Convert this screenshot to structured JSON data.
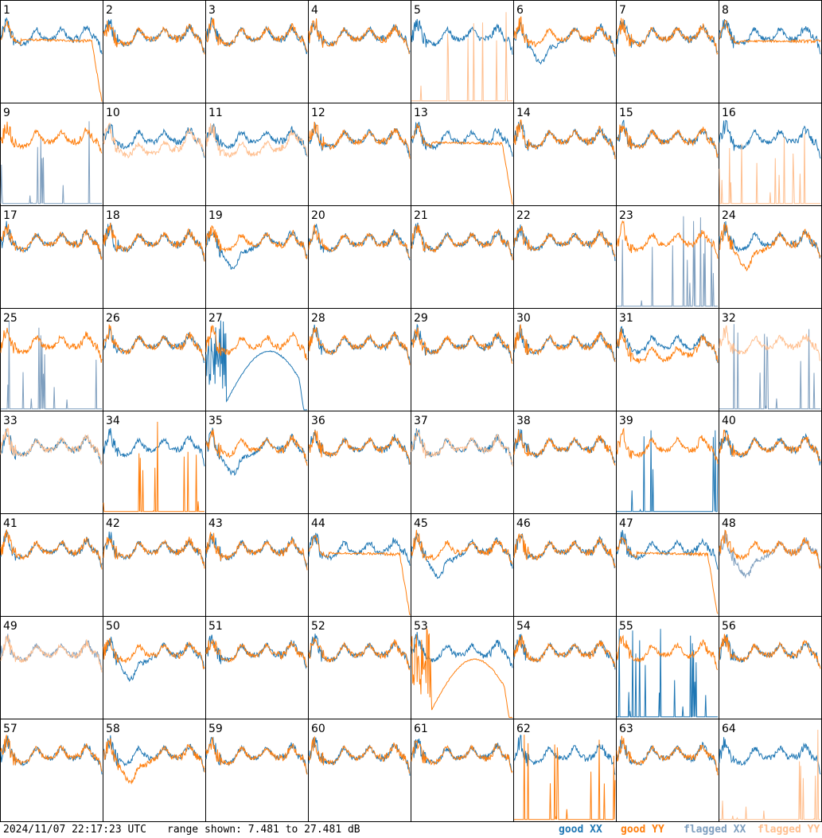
{
  "footer": {
    "timestamp": "2024/11/07 22:17:23 UTC",
    "range_text": "range shown: 7.481 to 27.481 dB"
  },
  "legend": [
    {
      "key": "gx",
      "label": "good XX",
      "color": "#1f77b4"
    },
    {
      "key": "gy",
      "label": "good YY",
      "color": "#ff7f0e"
    },
    {
      "key": "fx",
      "label": "flagged XX",
      "color": "#7f9fbf"
    },
    {
      "key": "fy",
      "label": "flagged YY",
      "color": "#ffbf8f"
    }
  ],
  "chart_data": {
    "type": "line",
    "title": "",
    "xlabel": "",
    "ylabel": "",
    "ylim": [
      7.481,
      27.481
    ],
    "grid_rows": 8,
    "grid_cols": 8,
    "panels": [
      {
        "label": "1",
        "xx": "good",
        "yy": "good",
        "yy_shape": "drop"
      },
      {
        "label": "2",
        "xx": "good",
        "yy": "good"
      },
      {
        "label": "3",
        "xx": "good",
        "yy": "good"
      },
      {
        "label": "4",
        "xx": "good",
        "yy": "good"
      },
      {
        "label": "5",
        "xx": "good",
        "yy": "flagged",
        "yy_shape": "spikes"
      },
      {
        "label": "6",
        "xx": "good",
        "yy": "good",
        "xx_shape": "dip"
      },
      {
        "label": "7",
        "xx": "good",
        "yy": "good"
      },
      {
        "label": "8",
        "xx": "good",
        "yy": "good",
        "yy_shape": "flat"
      },
      {
        "label": "9",
        "xx": "flagged",
        "yy": "good",
        "xx_shape": "spikes"
      },
      {
        "label": "10",
        "xx": "good",
        "yy": "flagged",
        "yy_shape": "low"
      },
      {
        "label": "11",
        "xx": "good",
        "yy": "flagged",
        "yy_shape": "low"
      },
      {
        "label": "12",
        "xx": "good",
        "yy": "good"
      },
      {
        "label": "13",
        "xx": "good",
        "yy": "good",
        "yy_shape": "drop"
      },
      {
        "label": "14",
        "xx": "good",
        "yy": "good"
      },
      {
        "label": "15",
        "xx": "good",
        "yy": "good"
      },
      {
        "label": "16",
        "xx": "good",
        "yy": "flagged",
        "yy_shape": "spikes"
      },
      {
        "label": "17",
        "xx": "good",
        "yy": "good"
      },
      {
        "label": "18",
        "xx": "good",
        "yy": "good"
      },
      {
        "label": "19",
        "xx": "good",
        "yy": "good",
        "xx_shape": "dip"
      },
      {
        "label": "20",
        "xx": "good",
        "yy": "good"
      },
      {
        "label": "21",
        "xx": "good",
        "yy": "good"
      },
      {
        "label": "22",
        "xx": "good",
        "yy": "good"
      },
      {
        "label": "23",
        "xx": "flagged",
        "yy": "good",
        "xx_shape": "spikes"
      },
      {
        "label": "24",
        "xx": "good",
        "yy": "good",
        "yy_shape": "dip"
      },
      {
        "label": "25",
        "xx": "flagged",
        "yy": "good",
        "xx_shape": "spikes"
      },
      {
        "label": "26",
        "xx": "good",
        "yy": "good"
      },
      {
        "label": "27",
        "xx": "good",
        "yy": "good",
        "xx_shape": "arch"
      },
      {
        "label": "28",
        "xx": "good",
        "yy": "good"
      },
      {
        "label": "29",
        "xx": "good",
        "yy": "good"
      },
      {
        "label": "30",
        "xx": "good",
        "yy": "good"
      },
      {
        "label": "31",
        "xx": "good",
        "yy": "good",
        "yy_shape": "low"
      },
      {
        "label": "32",
        "xx": "flagged",
        "yy": "flagged",
        "xx_shape": "spikes"
      },
      {
        "label": "33",
        "xx": "good",
        "yy": "flagged"
      },
      {
        "label": "34",
        "xx": "good",
        "yy": "good",
        "yy_shape": "spikes"
      },
      {
        "label": "35",
        "xx": "good",
        "yy": "good",
        "xx_shape": "dip"
      },
      {
        "label": "36",
        "xx": "good",
        "yy": "good"
      },
      {
        "label": "37",
        "xx": "good",
        "yy": "flagged"
      },
      {
        "label": "38",
        "xx": "good",
        "yy": "good"
      },
      {
        "label": "39",
        "xx": "good",
        "yy": "good",
        "xx_shape": "spikes"
      },
      {
        "label": "40",
        "xx": "good",
        "yy": "good"
      },
      {
        "label": "41",
        "xx": "good",
        "yy": "good"
      },
      {
        "label": "42",
        "xx": "good",
        "yy": "good"
      },
      {
        "label": "43",
        "xx": "good",
        "yy": "good"
      },
      {
        "label": "44",
        "xx": "good",
        "yy": "good",
        "yy_shape": "drop"
      },
      {
        "label": "45",
        "xx": "good",
        "yy": "good",
        "xx_shape": "dip"
      },
      {
        "label": "46",
        "xx": "good",
        "yy": "good"
      },
      {
        "label": "47",
        "xx": "good",
        "yy": "good",
        "yy_shape": "drop"
      },
      {
        "label": "48",
        "xx": "flagged",
        "yy": "good",
        "xx_shape": "dip"
      },
      {
        "label": "49",
        "xx": "flagged",
        "yy": "flagged"
      },
      {
        "label": "50",
        "xx": "good",
        "yy": "good",
        "xx_shape": "dip"
      },
      {
        "label": "51",
        "xx": "good",
        "yy": "good"
      },
      {
        "label": "52",
        "xx": "good",
        "yy": "good"
      },
      {
        "label": "53",
        "xx": "good",
        "yy": "good",
        "yy_shape": "arch"
      },
      {
        "label": "54",
        "xx": "good",
        "yy": "good"
      },
      {
        "label": "55",
        "xx": "good",
        "yy": "good",
        "xx_shape": "spikes"
      },
      {
        "label": "56",
        "xx": "good",
        "yy": "good"
      },
      {
        "label": "57",
        "xx": "good",
        "yy": "good"
      },
      {
        "label": "58",
        "xx": "good",
        "yy": "good",
        "yy_shape": "dip"
      },
      {
        "label": "59",
        "xx": "good",
        "yy": "good"
      },
      {
        "label": "60",
        "xx": "good",
        "yy": "good"
      },
      {
        "label": "61",
        "xx": "good",
        "yy": "good"
      },
      {
        "label": "62",
        "xx": "good",
        "yy": "good",
        "yy_shape": "spikes"
      },
      {
        "label": "63",
        "xx": "good",
        "yy": "good"
      },
      {
        "label": "64",
        "xx": "good",
        "yy": "flagged",
        "yy_shape": "spikes"
      }
    ]
  }
}
